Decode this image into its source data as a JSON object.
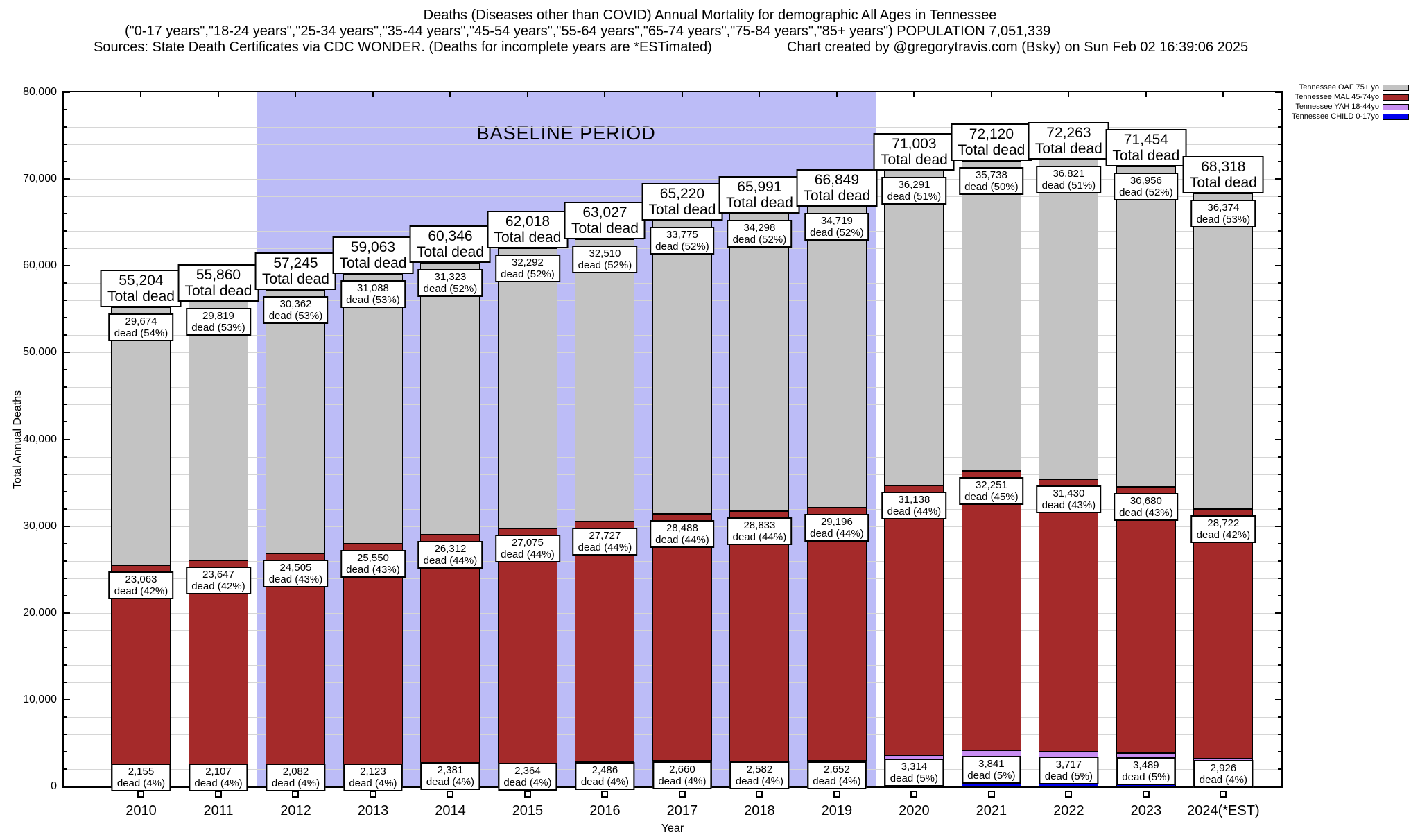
{
  "header": {
    "line1": "Deaths (Diseases other than COVID) Annual Mortality for demographic All Ages in Tennessee",
    "line2": "(\"0-17 years\",\"18-24 years\",\"25-34 years\",\"35-44 years\",\"45-54 years\",\"55-64 years\",\"65-74 years\",\"75-84 years\",\"85+ years\") POPULATION 7,051,339",
    "line3_left": "Sources: State Death Certificates via CDC WONDER. (Deaths for incomplete years are *ESTimated)",
    "line3_right": "Chart created by @gregorytravis.com (Bsky) on Sun Feb 02 16:39:06 2025"
  },
  "chart_data": {
    "type": "bar",
    "stacked": true,
    "xlabel": "Year",
    "ylabel": "Total Annual Deaths",
    "ylim": [
      0,
      80000
    ],
    "ytick_step": 10000,
    "minor_grid_step": 2000,
    "grid": true,
    "legend_position": "top-right-outside",
    "categories": [
      "2010",
      "2011",
      "2012",
      "2013",
      "2014",
      "2015",
      "2016",
      "2017",
      "2018",
      "2019",
      "2020",
      "2021",
      "2022",
      "2023",
      "2024(*EST)"
    ],
    "totals": [
      55204,
      55860,
      57245,
      59063,
      60346,
      62018,
      63027,
      65220,
      65991,
      66849,
      71003,
      72120,
      72263,
      71454,
      68318
    ],
    "series": [
      {
        "id": "oaf",
        "name": "Tennessee OAF 75+ yo",
        "color": "#c3c3c3",
        "values": [
          29674,
          29819,
          30362,
          31088,
          31323,
          32292,
          32510,
          33775,
          34298,
          34719,
          36291,
          35738,
          36821,
          36956,
          36374
        ],
        "pcts": [
          54,
          53,
          53,
          53,
          52,
          52,
          52,
          52,
          52,
          52,
          51,
          50,
          51,
          52,
          53
        ],
        "labeled": true
      },
      {
        "id": "mal",
        "name": "Tennessee MAL 45-74yo",
        "color": "#a52a2a",
        "values": [
          23063,
          23647,
          24505,
          25550,
          26312,
          27075,
          27727,
          28488,
          28833,
          29196,
          31138,
          32251,
          31430,
          30680,
          28722
        ],
        "pcts": [
          42,
          42,
          43,
          43,
          44,
          44,
          44,
          44,
          44,
          44,
          44,
          45,
          43,
          43,
          42
        ],
        "labeled": true
      },
      {
        "id": "yah",
        "name": "Tennessee YAH 18-44yo",
        "color": "#c88df2",
        "values": [
          2155,
          2107,
          2082,
          2123,
          2381,
          2364,
          2486,
          2660,
          2582,
          2652,
          3314,
          3841,
          3717,
          3489,
          2926
        ],
        "pcts": [
          4,
          4,
          4,
          4,
          4,
          4,
          4,
          4,
          4,
          4,
          5,
          5,
          5,
          5,
          4
        ],
        "labeled": true
      },
      {
        "id": "child",
        "name": "Tennessee CHILD 0-17yo",
        "color": "#0000ee",
        "values": [
          312,
          287,
          296,
          302,
          330,
          287,
          304,
          297,
          278,
          282,
          260,
          290,
          295,
          329,
          296
        ],
        "values_estimated_from_pixels": true,
        "labeled": false
      }
    ],
    "baseline_band": {
      "label": "BASELINE PERIOD",
      "x_start": 2011.5,
      "x_end": 2019.5,
      "color": "#bcbcf7"
    },
    "label_text": {
      "total_line2": "Total dead",
      "segment_word": "dead"
    }
  }
}
